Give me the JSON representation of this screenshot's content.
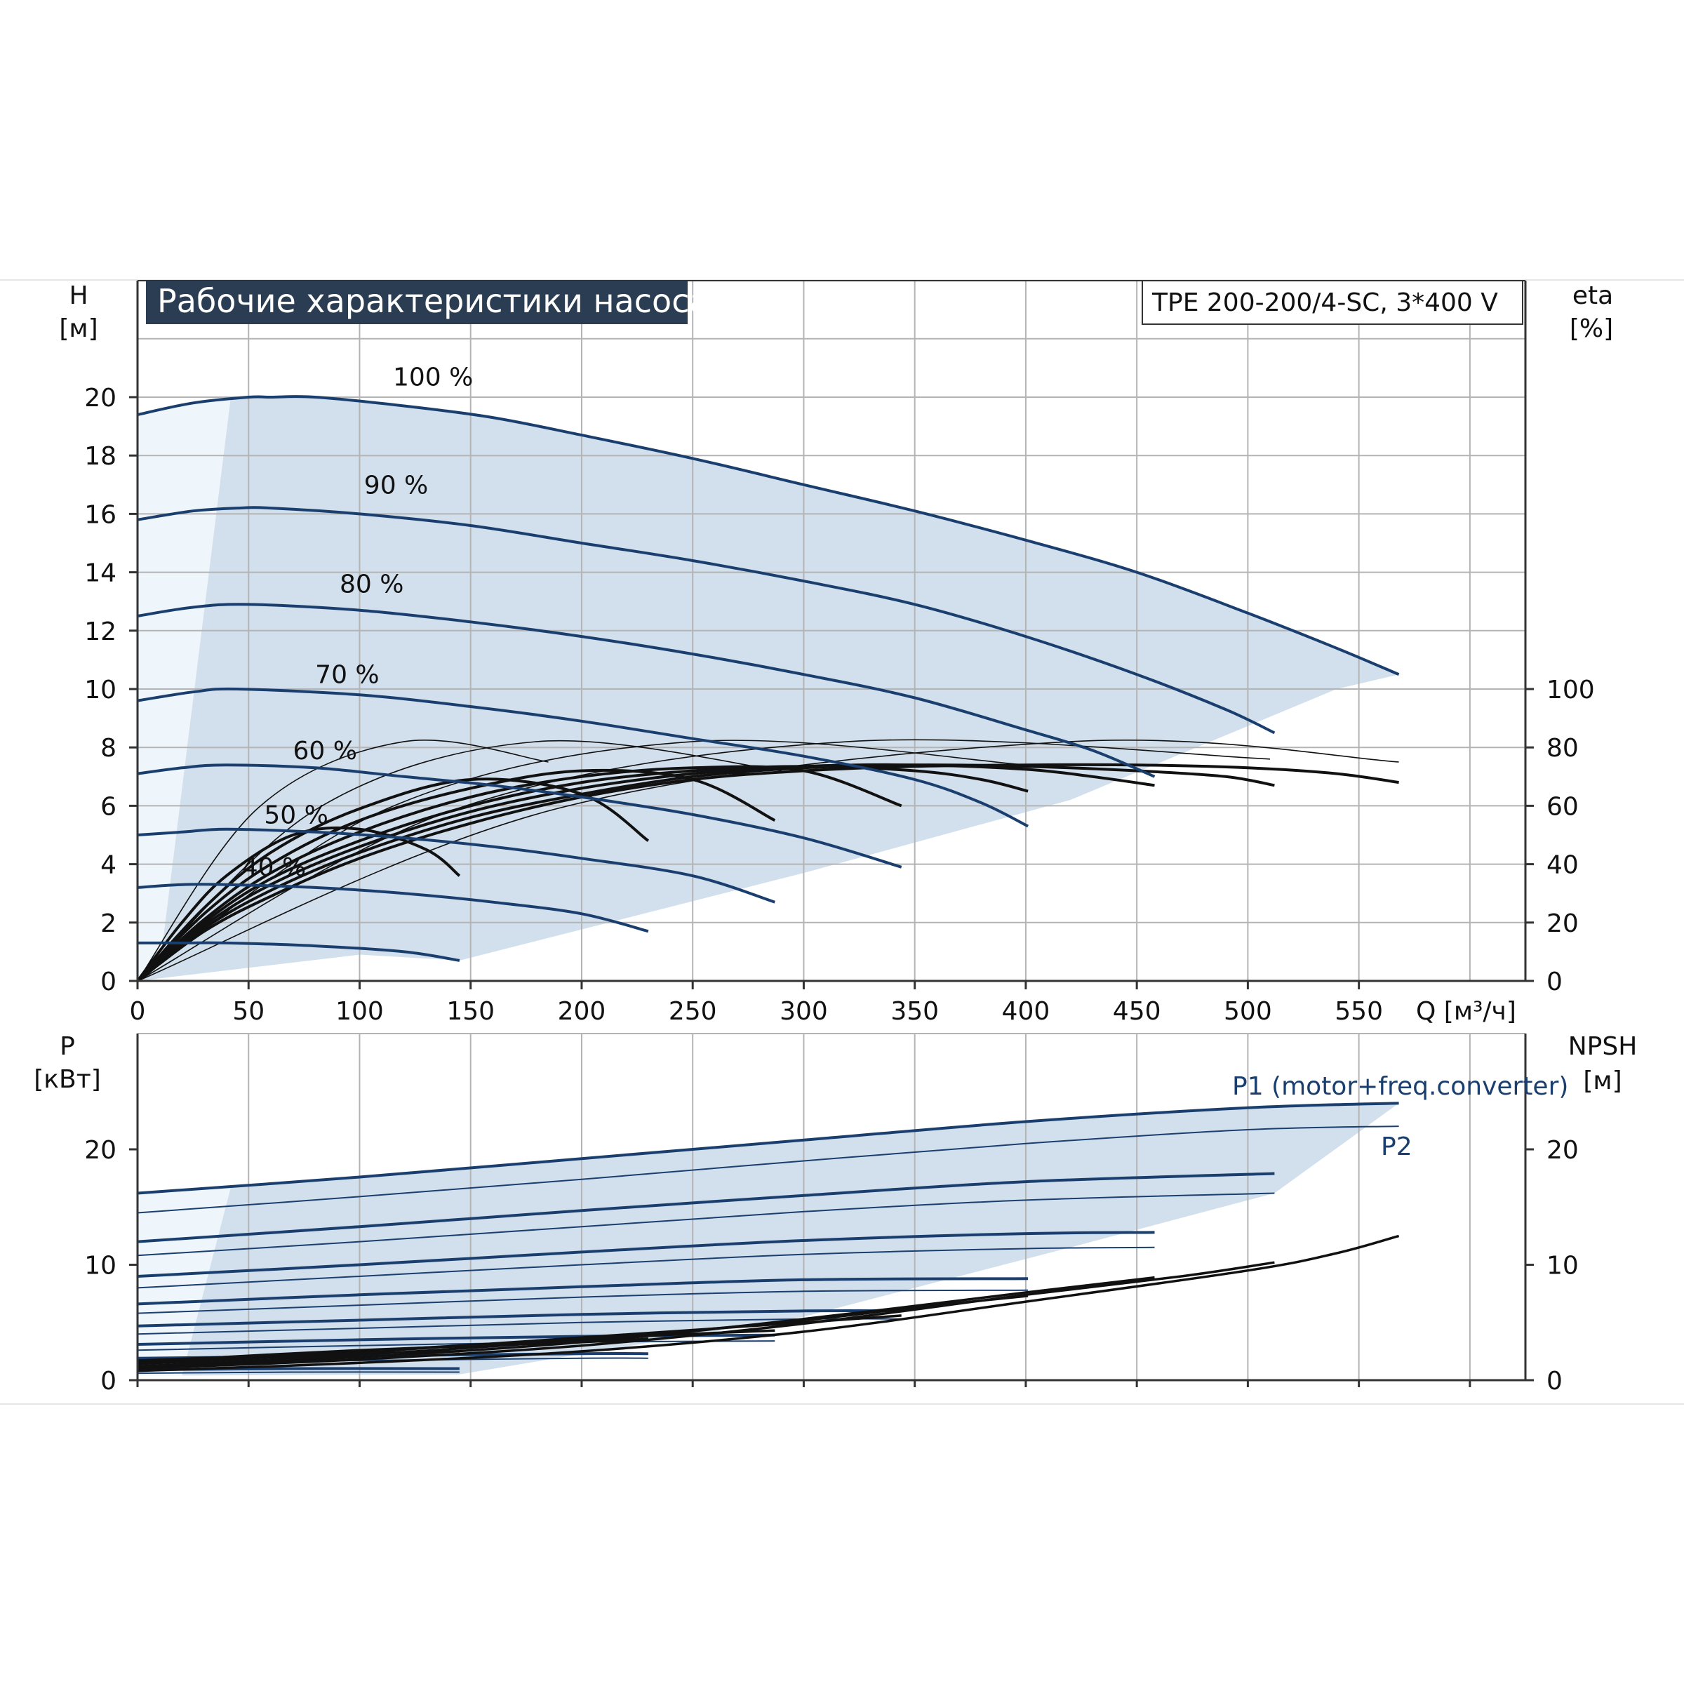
{
  "chart_data": [
    {
      "type": "line",
      "title": "Рабочие характеристики насоса",
      "model": "TPE 200-200/4-SC, 3*400 V",
      "ylabel": "H",
      "yunit": "[м]",
      "y2label": "eta",
      "y2unit": "[%]",
      "xlabel": "Q [м³/ч]",
      "xlim": [
        0,
        625
      ],
      "ylim": [
        0,
        20
      ],
      "y2lim": [
        0,
        100
      ],
      "xticks": [
        "0",
        "50",
        "100",
        "150",
        "200",
        "250",
        "300",
        "350",
        "400",
        "450",
        "500",
        "550"
      ],
      "yticks": [
        "0",
        "2",
        "4",
        "6",
        "8",
        "10",
        "12",
        "14",
        "16",
        "18",
        "20"
      ],
      "y2ticks": [
        "0",
        "20",
        "40",
        "60",
        "80",
        "100"
      ],
      "grid": true,
      "head_series": [
        {
          "name": "100 %",
          "x": [
            0,
            25,
            50,
            60,
            80,
            120,
            160,
            200,
            250,
            300,
            350,
            400,
            450,
            500,
            540,
            568
          ],
          "y": [
            19.4,
            19.8,
            20.0,
            20.0,
            20.0,
            19.7,
            19.3,
            18.7,
            17.9,
            17.0,
            16.1,
            15.1,
            14.0,
            12.6,
            11.4,
            10.5
          ]
        },
        {
          "name": "90 %",
          "x": [
            0,
            25,
            45,
            60,
            100,
            150,
            200,
            250,
            300,
            350,
            400,
            450,
            490,
            512
          ],
          "y": [
            15.8,
            16.1,
            16.2,
            16.2,
            16.0,
            15.6,
            15.0,
            14.4,
            13.7,
            12.9,
            11.8,
            10.5,
            9.3,
            8.5
          ]
        },
        {
          "name": "80 %",
          "x": [
            0,
            25,
            50,
            100,
            150,
            200,
            250,
            300,
            350,
            400,
            430,
            458
          ],
          "y": [
            12.5,
            12.8,
            12.9,
            12.7,
            12.3,
            11.8,
            11.2,
            10.5,
            9.7,
            8.6,
            7.9,
            7.0
          ]
        },
        {
          "name": "70 %",
          "x": [
            0,
            25,
            45,
            100,
            150,
            200,
            250,
            300,
            350,
            380,
            401
          ],
          "y": [
            9.6,
            9.9,
            10.0,
            9.8,
            9.4,
            8.9,
            8.3,
            7.7,
            6.9,
            6.1,
            5.3
          ]
        },
        {
          "name": "60 %",
          "x": [
            0,
            20,
            40,
            80,
            120,
            160,
            200,
            250,
            300,
            344
          ],
          "y": [
            7.1,
            7.3,
            7.4,
            7.3,
            7.0,
            6.7,
            6.3,
            5.7,
            4.9,
            3.9
          ]
        },
        {
          "name": "50 %",
          "x": [
            0,
            20,
            40,
            80,
            120,
            160,
            200,
            250,
            287
          ],
          "y": [
            5.0,
            5.1,
            5.2,
            5.1,
            4.9,
            4.6,
            4.2,
            3.6,
            2.7
          ]
        },
        {
          "name": "40 %",
          "x": [
            0,
            20,
            40,
            80,
            120,
            160,
            200,
            230
          ],
          "y": [
            3.2,
            3.3,
            3.3,
            3.2,
            3.0,
            2.7,
            2.3,
            1.7
          ]
        },
        {
          "name": "",
          "x": [
            0,
            20,
            40,
            80,
            120,
            145
          ],
          "y": [
            1.3,
            1.3,
            1.3,
            1.2,
            1.0,
            0.7
          ]
        }
      ],
      "eta_series": [
        {
          "x": [
            0,
            30,
            60,
            100,
            150,
            200,
            250,
            300,
            350,
            400,
            450,
            500,
            540,
            568
          ],
          "y": [
            0,
            17,
            29,
            42,
            54,
            63,
            69,
            72,
            73.5,
            74,
            74,
            73,
            71,
            68
          ]
        },
        {
          "x": [
            0,
            30,
            60,
            100,
            150,
            200,
            250,
            300,
            350,
            400,
            450,
            490,
            512
          ],
          "y": [
            0,
            18,
            31,
            44,
            56,
            64,
            70,
            73,
            74,
            73.5,
            72,
            70,
            67
          ]
        },
        {
          "x": [
            0,
            30,
            60,
            100,
            150,
            200,
            250,
            300,
            350,
            400,
            430,
            458
          ],
          "y": [
            0,
            19,
            33,
            46,
            58,
            66,
            71,
            73.5,
            74,
            72.5,
            70,
            67
          ]
        },
        {
          "x": [
            0,
            30,
            60,
            100,
            150,
            200,
            250,
            300,
            350,
            380,
            401
          ],
          "y": [
            0,
            20,
            35,
            48,
            60,
            68,
            72,
            73.5,
            72,
            69,
            65
          ]
        },
        {
          "x": [
            0,
            30,
            60,
            100,
            150,
            200,
            250,
            300,
            344
          ],
          "y": [
            0,
            21,
            37,
            51,
            63,
            70,
            73,
            72,
            60
          ]
        },
        {
          "x": [
            0,
            30,
            60,
            100,
            150,
            200,
            250,
            287
          ],
          "y": [
            0,
            23,
            40,
            55,
            66,
            72,
            69,
            55
          ]
        },
        {
          "x": [
            0,
            30,
            60,
            100,
            150,
            200,
            230
          ],
          "y": [
            0,
            25,
            44,
            59,
            69,
            64,
            48
          ]
        },
        {
          "x": [
            0,
            20,
            40,
            70,
            100,
            130,
            145
          ],
          "y": [
            0,
            20,
            36,
            50,
            52,
            45,
            36
          ]
        }
      ]
    },
    {
      "type": "line",
      "ylabel": "P",
      "yunit": "[кВт]",
      "y2label": "NPSH",
      "y2unit": "[м]",
      "xlim": [
        0,
        625
      ],
      "ylim": [
        0,
        25
      ],
      "y2lim": [
        0,
        25
      ],
      "yticks": [
        "0",
        "10",
        "20"
      ],
      "y2ticks": [
        "0",
        "10",
        "20"
      ],
      "grid": true,
      "series_labels": {
        "p1": "P1 (motor+freq.converter)",
        "p2": "P2"
      },
      "power_series": [
        {
          "kind": "P1",
          "x": [
            0,
            100,
            200,
            300,
            400,
            500,
            568
          ],
          "y": [
            16.2,
            17.6,
            19.2,
            20.8,
            22.4,
            23.6,
            24.0
          ]
        },
        {
          "kind": "P2",
          "x": [
            0,
            100,
            200,
            300,
            400,
            500,
            568
          ],
          "y": [
            14.5,
            15.9,
            17.4,
            19.0,
            20.5,
            21.7,
            22.0
          ]
        },
        {
          "kind": "P1",
          "x": [
            0,
            100,
            200,
            300,
            400,
            512
          ],
          "y": [
            12.0,
            13.3,
            14.7,
            16.0,
            17.2,
            17.9
          ]
        },
        {
          "kind": "P2",
          "x": [
            0,
            100,
            200,
            300,
            400,
            512
          ],
          "y": [
            10.8,
            12.0,
            13.3,
            14.6,
            15.6,
            16.2
          ]
        },
        {
          "kind": "P1",
          "x": [
            0,
            100,
            200,
            300,
            400,
            458
          ],
          "y": [
            9.0,
            10.0,
            11.1,
            12.1,
            12.7,
            12.8
          ]
        },
        {
          "kind": "P2",
          "x": [
            0,
            100,
            200,
            300,
            400,
            458
          ],
          "y": [
            8.0,
            9.0,
            10.0,
            10.9,
            11.4,
            11.5
          ]
        },
        {
          "kind": "P1",
          "x": [
            0,
            100,
            200,
            300,
            401
          ],
          "y": [
            6.6,
            7.4,
            8.1,
            8.7,
            8.8
          ]
        },
        {
          "kind": "P2",
          "x": [
            0,
            100,
            200,
            300,
            401
          ],
          "y": [
            5.8,
            6.5,
            7.2,
            7.7,
            7.8
          ]
        },
        {
          "kind": "P1",
          "x": [
            0,
            100,
            200,
            300,
            344
          ],
          "y": [
            4.7,
            5.2,
            5.7,
            6.0,
            6.0
          ]
        },
        {
          "kind": "P2",
          "x": [
            0,
            100,
            200,
            300,
            344
          ],
          "y": [
            4.0,
            4.5,
            5.0,
            5.3,
            5.3
          ]
        },
        {
          "kind": "P1",
          "x": [
            0,
            100,
            200,
            287
          ],
          "y": [
            3.1,
            3.5,
            3.8,
            3.9
          ]
        },
        {
          "kind": "P2",
          "x": [
            0,
            100,
            200,
            287
          ],
          "y": [
            2.6,
            3.0,
            3.3,
            3.4
          ]
        },
        {
          "kind": "P1",
          "x": [
            0,
            100,
            200,
            230
          ],
          "y": [
            1.9,
            2.1,
            2.3,
            2.3
          ]
        },
        {
          "kind": "P2",
          "x": [
            0,
            100,
            200,
            230
          ],
          "y": [
            1.5,
            1.7,
            1.9,
            1.9
          ]
        },
        {
          "kind": "P1",
          "x": [
            0,
            70,
            145
          ],
          "y": [
            0.9,
            1.0,
            1.0
          ]
        },
        {
          "kind": "P2",
          "x": [
            0,
            70,
            145
          ],
          "y": [
            0.6,
            0.7,
            0.7
          ]
        }
      ],
      "npsh_series": [
        {
          "x": [
            0,
            100,
            200,
            300,
            400,
            500,
            540,
            568
          ],
          "y": [
            0.8,
            1.5,
            2.5,
            4.2,
            6.8,
            9.5,
            11.0,
            12.5
          ]
        },
        {
          "x": [
            0,
            100,
            200,
            300,
            400,
            470,
            512
          ],
          "y": [
            1.0,
            1.8,
            3.0,
            4.9,
            7.4,
            9.0,
            10.2
          ]
        },
        {
          "x": [
            0,
            100,
            200,
            300,
            400,
            458
          ],
          "y": [
            1.1,
            2.0,
            3.3,
            5.3,
            7.6,
            8.9
          ]
        },
        {
          "x": [
            0,
            100,
            200,
            300,
            350,
            401
          ],
          "y": [
            1.2,
            2.2,
            3.5,
            5.2,
            6.3,
            7.3
          ]
        },
        {
          "x": [
            0,
            100,
            200,
            300,
            344
          ],
          "y": [
            1.4,
            2.4,
            3.7,
            5.0,
            5.6
          ]
        },
        {
          "x": [
            0,
            100,
            200,
            287
          ],
          "y": [
            1.5,
            2.5,
            3.6,
            4.3
          ]
        },
        {
          "x": [
            0,
            100,
            200,
            230
          ],
          "y": [
            1.6,
            2.6,
            3.3,
            3.6
          ]
        },
        {
          "x": [
            0,
            70,
            145
          ],
          "y": [
            1.7,
            2.2,
            2.5
          ]
        }
      ]
    }
  ]
}
